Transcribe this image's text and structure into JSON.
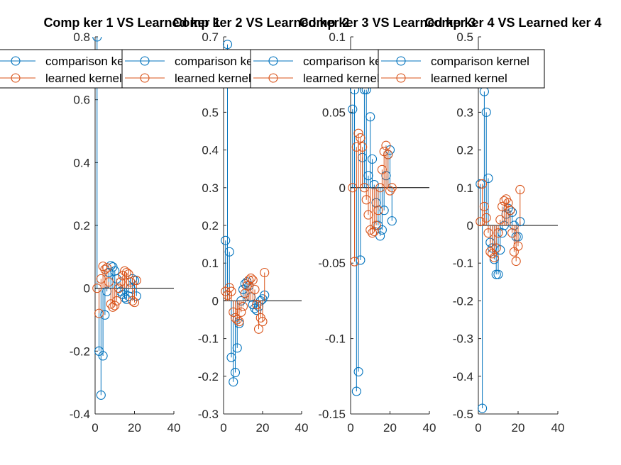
{
  "colors": {
    "comparison": "#0072BD",
    "learned": "#D95319",
    "axis": "#262626",
    "background": "#ffffff"
  },
  "chart_data": [
    {
      "type": "stem",
      "title": "Comp ker 1  VS Learned ker 1",
      "xlim": [
        0,
        40
      ],
      "ylim": [
        -0.4,
        0.8
      ],
      "xticks": [
        0,
        20,
        40
      ],
      "yticks": [
        -0.4,
        -0.2,
        0,
        0.2,
        0.4,
        0.6,
        0.8
      ],
      "xtick_labels": [
        "0",
        "20",
        "40"
      ],
      "ytick_labels": [
        "-0.4",
        "-0.2",
        "0",
        "0.2",
        "0.4",
        "0.6",
        "0.8"
      ],
      "legend": [
        "comparison kernel",
        "learned kernel"
      ],
      "series": [
        {
          "name": "comparison kernel",
          "x": [
            1,
            2,
            3,
            4,
            5,
            6,
            7,
            8,
            9,
            10,
            11,
            12,
            13,
            14,
            15,
            16,
            17,
            18,
            19,
            20,
            21
          ],
          "y": [
            0.8,
            -0.2,
            -0.34,
            -0.215,
            -0.085,
            -0.01,
            0.05,
            0.072,
            0.068,
            0.055,
            0.03,
            0.0,
            -0.01,
            -0.02,
            -0.03,
            -0.035,
            -0.025,
            0.0,
            0.03,
            0.025,
            -0.025
          ]
        },
        {
          "name": "learned kernel",
          "x": [
            1,
            2,
            3,
            4,
            5,
            6,
            7,
            8,
            9,
            10,
            11,
            12,
            13,
            14,
            15,
            16,
            17,
            18,
            19,
            20,
            21
          ],
          "y": [
            0.0,
            -0.08,
            0.03,
            0.07,
            0.06,
            0.065,
            0.02,
            -0.05,
            -0.06,
            -0.055,
            -0.04,
            0.0,
            0.02,
            0.04,
            0.055,
            0.05,
            0.045,
            0.02,
            -0.04,
            -0.045,
            0.025
          ]
        }
      ]
    },
    {
      "type": "stem",
      "title": "Comp ker 2  VS Learned ker 2",
      "xlim": [
        0,
        40
      ],
      "ylim": [
        -0.3,
        0.7
      ],
      "xticks": [
        0,
        20,
        40
      ],
      "yticks": [
        -0.3,
        -0.2,
        -0.1,
        0,
        0.1,
        0.2,
        0.3,
        0.4,
        0.5,
        0.6,
        0.7
      ],
      "xtick_labels": [
        "0",
        "20",
        "40"
      ],
      "ytick_labels": [
        "-0.3",
        "-0.2",
        "-0.1",
        "0",
        "0.1",
        "0.2",
        "0.3",
        "0.4",
        "0.5",
        "0.6",
        "0.7"
      ],
      "legend": [
        "comparison kernel",
        "learned kernel"
      ],
      "series": [
        {
          "name": "comparison kernel",
          "x": [
            1,
            2,
            3,
            4,
            5,
            6,
            7,
            8,
            9,
            10,
            11,
            12,
            13,
            14,
            15,
            16,
            17,
            18,
            19,
            20,
            21
          ],
          "y": [
            0.16,
            0.68,
            0.13,
            -0.15,
            -0.215,
            -0.19,
            -0.125,
            -0.06,
            0.0,
            0.03,
            0.045,
            0.05,
            0.04,
            0.01,
            -0.01,
            -0.02,
            -0.025,
            -0.015,
            0.0,
            0.005,
            0.015
          ]
        },
        {
          "name": "learned kernel",
          "x": [
            1,
            2,
            3,
            4,
            5,
            6,
            7,
            8,
            9,
            10,
            11,
            12,
            13,
            14,
            15,
            16,
            17,
            18,
            19,
            20,
            21
          ],
          "y": [
            0.025,
            0.015,
            0.035,
            0.025,
            -0.03,
            -0.045,
            -0.05,
            -0.055,
            -0.03,
            -0.015,
            0.02,
            0.04,
            0.055,
            0.06,
            0.055,
            0.03,
            -0.01,
            -0.075,
            -0.045,
            -0.055,
            0.075
          ]
        }
      ]
    },
    {
      "type": "stem",
      "title": "Comp ker 3  VS Learned ker 3",
      "xlim": [
        0,
        40
      ],
      "ylim": [
        -0.15,
        0.1
      ],
      "xticks": [
        0,
        20,
        40
      ],
      "yticks": [
        -0.15,
        -0.1,
        -0.05,
        0,
        0.05,
        0.1
      ],
      "xtick_labels": [
        "0",
        "20",
        "40"
      ],
      "ytick_labels": [
        "-0.15",
        "-0.1",
        "-0.05",
        "0",
        "0.05",
        "0.1"
      ],
      "legend": [
        "comparison kernel",
        "learned kernel"
      ],
      "series": [
        {
          "name": "comparison kernel",
          "x": [
            1,
            2,
            3,
            4,
            5,
            6,
            7,
            8,
            9,
            10,
            11,
            12,
            13,
            14,
            15,
            16,
            17,
            18,
            19,
            20,
            21
          ],
          "y": [
            0.052,
            0.065,
            -0.135,
            -0.122,
            -0.048,
            0.02,
            0.065,
            0.065,
            0.008,
            0.047,
            0.019,
            0.002,
            -0.01,
            -0.025,
            -0.032,
            -0.028,
            -0.015,
            0.008,
            0.022,
            0.025,
            -0.022
          ]
        },
        {
          "name": "learned kernel",
          "x": [
            1,
            2,
            3,
            4,
            5,
            6,
            7,
            8,
            9,
            10,
            11,
            12,
            13,
            14,
            15,
            16,
            17,
            18,
            19,
            20,
            21
          ],
          "y": [
            0.0,
            -0.049,
            0.027,
            0.036,
            0.033,
            0.027,
            0.0,
            -0.008,
            -0.018,
            -0.028,
            -0.03,
            -0.029,
            -0.025,
            -0.015,
            0.0,
            0.012,
            0.024,
            0.028,
            0.022,
            -0.002,
            0.0
          ]
        }
      ]
    },
    {
      "type": "stem",
      "title": "Comp ker 4  VS Learned ker 4",
      "xlim": [
        0,
        40
      ],
      "ylim": [
        -0.5,
        0.5
      ],
      "xticks": [
        0,
        20,
        40
      ],
      "yticks": [
        -0.5,
        -0.4,
        -0.3,
        -0.2,
        -0.1,
        0,
        0.1,
        0.2,
        0.3,
        0.4,
        0.5
      ],
      "xtick_labels": [
        "0",
        "20",
        "40"
      ],
      "ytick_labels": [
        "-0.5",
        "-0.4",
        "-0.3",
        "-0.2",
        "-0.1",
        "0",
        "0.1",
        "0.2",
        "0.3",
        "0.4",
        "0.5"
      ],
      "legend": [
        "comparison kernel",
        "learned kernel"
      ],
      "series": [
        {
          "name": "comparison kernel",
          "x": [
            1,
            2,
            3,
            4,
            5,
            6,
            7,
            8,
            9,
            10,
            11,
            12,
            13,
            14,
            15,
            16,
            17,
            18,
            19,
            20,
            21
          ],
          "y": [
            0.11,
            -0.485,
            0.355,
            0.3,
            0.125,
            -0.045,
            -0.06,
            -0.09,
            -0.13,
            -0.13,
            -0.065,
            -0.02,
            0.0,
            0.03,
            0.045,
            0.04,
            0.035,
            0.0,
            -0.03,
            -0.03,
            0.01
          ]
        },
        {
          "name": "learned kernel",
          "x": [
            1,
            2,
            3,
            4,
            5,
            6,
            7,
            8,
            9,
            10,
            11,
            12,
            13,
            14,
            15,
            16,
            17,
            18,
            19,
            20,
            21
          ],
          "y": [
            0.01,
            0.11,
            0.05,
            0.02,
            -0.02,
            -0.07,
            -0.075,
            -0.085,
            -0.06,
            -0.02,
            0.015,
            0.05,
            0.065,
            0.07,
            0.06,
            0.04,
            -0.02,
            -0.07,
            -0.095,
            -0.055,
            0.095
          ]
        }
      ]
    }
  ]
}
